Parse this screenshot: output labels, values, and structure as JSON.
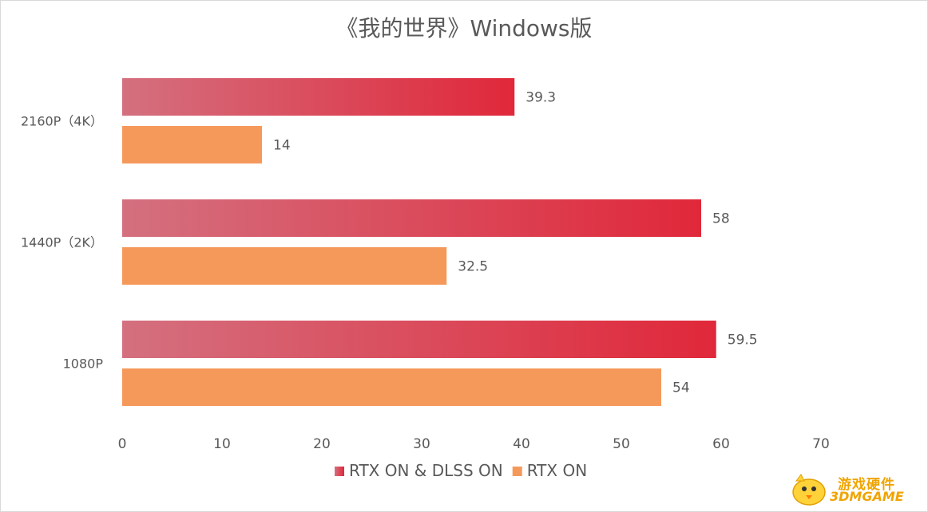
{
  "chart_data": {
    "type": "bar",
    "orientation": "horizontal",
    "title": "《我的世界》Windows版",
    "categories": [
      "2160P（4K）",
      "1440P（2K）",
      "1080P"
    ],
    "series": [
      {
        "name": "RTX ON & DLSS ON",
        "values": [
          39.3,
          58,
          59.5
        ],
        "color": "#e0283a",
        "color_start": "#d4707f"
      },
      {
        "name": "RTX ON",
        "values": [
          14,
          32.5,
          54
        ],
        "color": "#f5995b"
      }
    ],
    "xlim": [
      0,
      70
    ],
    "xticks": [
      0,
      10,
      20,
      30,
      40,
      50,
      60,
      70
    ],
    "grid": false,
    "legend_position": "bottom"
  },
  "watermark": {
    "line1": "游戏硬件",
    "line2": "3DMGAME",
    "mascot_icon": "chick-mascot-icon"
  }
}
